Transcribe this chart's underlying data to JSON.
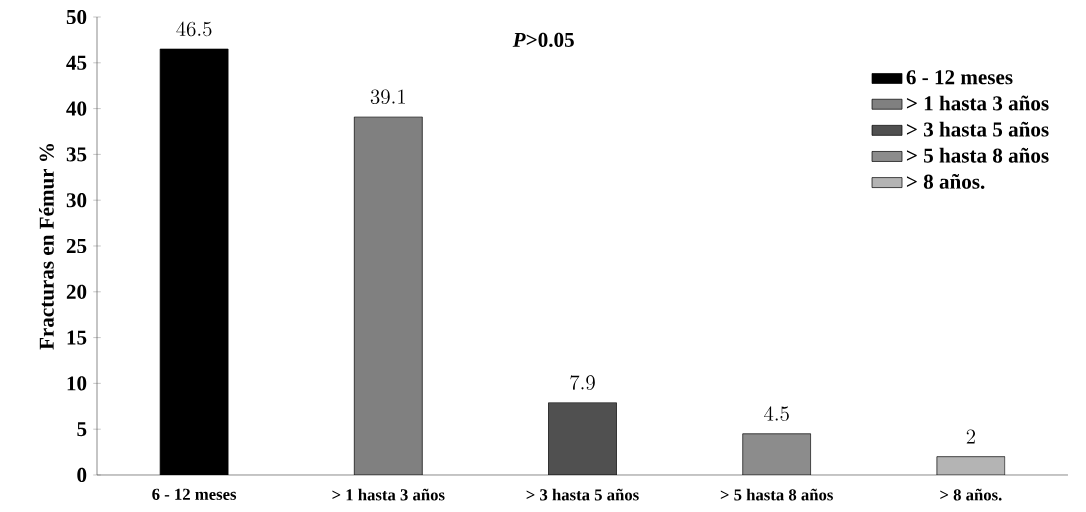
{
  "chart_data": {
    "type": "bar",
    "ylabel": "Fracturas en Fémur %",
    "categories": [
      "6 - 12 meses",
      "> 1 hasta 3 años",
      "> 3 hasta 5 años",
      "> 5 hasta 8 años",
      "> 8 años."
    ],
    "series": [
      {
        "name": "6 - 12 meses",
        "color": "#000000",
        "values": [
          46.5,
          null,
          null,
          null,
          null
        ]
      },
      {
        "name": "> 1 hasta 3 años",
        "color": "#808080",
        "values": [
          null,
          39.1,
          null,
          null,
          null
        ]
      },
      {
        "name": "> 3 hasta 5 años",
        "color": "#505050",
        "values": [
          null,
          null,
          7.9,
          null,
          null
        ]
      },
      {
        "name": "> 5 hasta 8 años",
        "color": "#8c8c8c",
        "values": [
          null,
          null,
          null,
          4.5,
          null
        ]
      },
      {
        "name": "> 8 años.",
        "color": "#b4b4b4",
        "values": [
          null,
          null,
          null,
          null,
          2
        ]
      }
    ],
    "ylim": [
      0,
      50
    ],
    "yticks": [
      0,
      5,
      10,
      15,
      20,
      25,
      30,
      35,
      40,
      45,
      50
    ],
    "data_labels": true,
    "legend": "top right",
    "grid": false,
    "annotations": [
      "*P*>0.05"
    ]
  }
}
